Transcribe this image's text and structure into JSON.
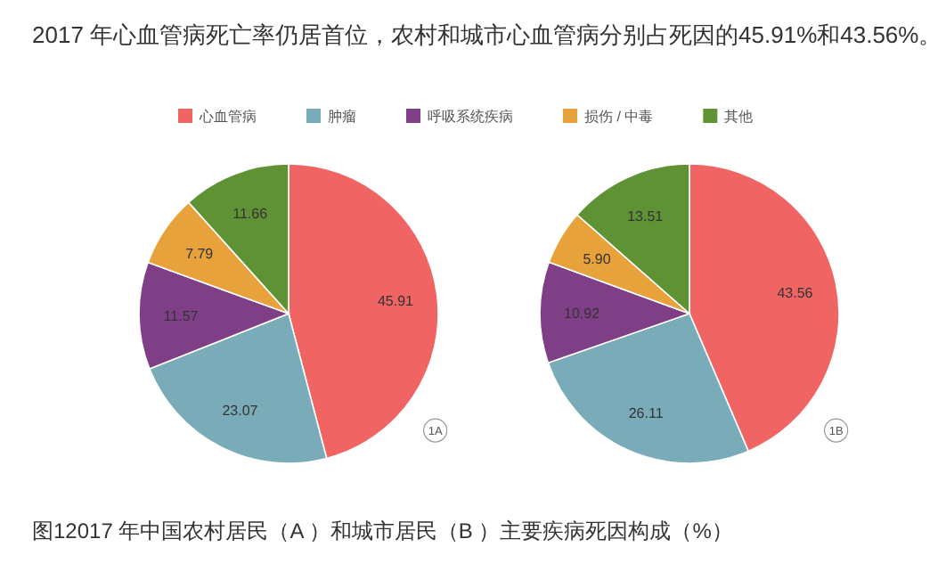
{
  "chart_data": [
    {
      "type": "pie",
      "title": "2017 年心血管病死亡率仍居首位，农村和城市心血管病分别占死因的45.91%和43.56%。",
      "categories": [
        "心血管病",
        "肿瘤",
        "呼吸系统疾病",
        "损伤 / 中毒",
        "其他"
      ],
      "values": [
        45.91,
        23.07,
        11.57,
        7.79,
        11.66
      ],
      "colors": [
        "#f06464",
        "#7aabb8",
        "#7e3f87",
        "#e8a23c",
        "#5e9234"
      ],
      "data_labels": true,
      "legend": "top",
      "annotations": [
        "1A"
      ]
    },
    {
      "type": "pie",
      "categories": [
        null,
        null,
        null,
        null,
        null
      ],
      "values": [
        43.56,
        26.11,
        10.92,
        5.9,
        13.51
      ],
      "value_labels": [
        "43.56",
        "26.11",
        "10.92",
        "5.90",
        "13.51"
      ],
      "colors": [
        "#f06464",
        "#7aabb8",
        "#7e3f87",
        "#e8a23c",
        "#5e9234"
      ],
      "annotations": [
        "1B",
        "图12017 年中国农村居民（A ）和城市居民（B ）主要疾病死因构成（%）"
      ]
    }
  ]
}
